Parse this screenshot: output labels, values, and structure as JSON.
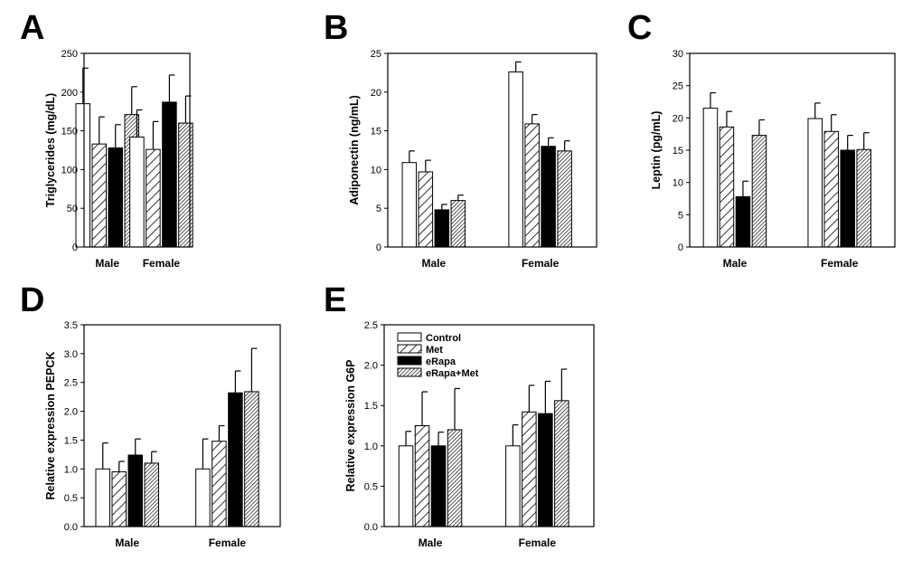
{
  "figure": {
    "series_styles": [
      {
        "name": "Control",
        "pattern": "none",
        "fill": "#ffffff"
      },
      {
        "name": "Met",
        "pattern": "diag-wide",
        "fill": "#ffffff"
      },
      {
        "name": "eRapa",
        "pattern": "none",
        "fill": "#000000"
      },
      {
        "name": "eRapa+Met",
        "pattern": "diag-dense",
        "fill": "#ffffff"
      }
    ],
    "legend": {
      "panel": "E",
      "entries": [
        "Control",
        "Met",
        "eRapa",
        "eRapa+Met"
      ]
    }
  },
  "chart_data": [
    {
      "panel": "A",
      "type": "bar",
      "title": "",
      "xlabel": "",
      "ylabel": "Triglycerides (mg/dL)",
      "categories": [
        "Male",
        "Female"
      ],
      "ylim": [
        0,
        250
      ],
      "yticks": [
        0,
        50,
        100,
        150,
        200,
        250
      ],
      "ytick_labels": [
        "0",
        "50",
        "100",
        "150",
        "200",
        "250"
      ],
      "series": [
        {
          "name": "Control",
          "values": [
            185,
            142
          ],
          "errors": [
            46,
            35
          ]
        },
        {
          "name": "Met",
          "values": [
            133,
            126
          ],
          "errors": [
            35,
            36
          ]
        },
        {
          "name": "eRapa",
          "values": [
            128,
            187
          ],
          "errors": [
            30,
            35
          ]
        },
        {
          "name": "eRapa+Met",
          "values": [
            171,
            160
          ],
          "errors": [
            36,
            35
          ]
        }
      ]
    },
    {
      "panel": "B",
      "type": "bar",
      "title": "",
      "xlabel": "",
      "ylabel": "Adiponectin (ng/mL)",
      "categories": [
        "Male",
        "Female"
      ],
      "ylim": [
        0,
        25
      ],
      "yticks": [
        0,
        5,
        10,
        15,
        20,
        25
      ],
      "ytick_labels": [
        "0",
        "5",
        "10",
        "15",
        "20",
        "25"
      ],
      "series": [
        {
          "name": "Control",
          "values": [
            10.9,
            22.6
          ],
          "errors": [
            1.5,
            1.3
          ]
        },
        {
          "name": "Met",
          "values": [
            9.7,
            15.9
          ],
          "errors": [
            1.5,
            1.2
          ]
        },
        {
          "name": "eRapa",
          "values": [
            4.8,
            13.0
          ],
          "errors": [
            0.7,
            1.1
          ]
        },
        {
          "name": "eRapa+Met",
          "values": [
            6.0,
            12.4
          ],
          "errors": [
            0.7,
            1.3
          ]
        }
      ]
    },
    {
      "panel": "C",
      "type": "bar",
      "title": "",
      "xlabel": "",
      "ylabel": "Leptin (pg/mL)",
      "categories": [
        "Male",
        "Female"
      ],
      "ylim": [
        0,
        30
      ],
      "yticks": [
        0,
        5,
        10,
        15,
        20,
        25,
        30
      ],
      "ytick_labels": [
        "0",
        "5",
        "10",
        "15",
        "20",
        "25",
        "30"
      ],
      "series": [
        {
          "name": "Control",
          "values": [
            21.5,
            19.9
          ],
          "errors": [
            2.4,
            2.4
          ]
        },
        {
          "name": "Met",
          "values": [
            18.6,
            17.9
          ],
          "errors": [
            2.4,
            2.6
          ]
        },
        {
          "name": "eRapa",
          "values": [
            7.8,
            15.0
          ],
          "errors": [
            2.4,
            2.3
          ]
        },
        {
          "name": "eRapa+Met",
          "values": [
            17.3,
            15.1
          ],
          "errors": [
            2.4,
            2.6
          ]
        }
      ]
    },
    {
      "panel": "D",
      "type": "bar",
      "title": "",
      "xlabel": "",
      "ylabel": "Relative expression PEPCK",
      "categories": [
        "Male",
        "Female"
      ],
      "ylim": [
        0,
        3.5
      ],
      "yticks": [
        0,
        0.5,
        1,
        1.5,
        2,
        2.5,
        3,
        3.5
      ],
      "ytick_labels": [
        "0.0",
        "0.5",
        "1.0",
        "1.5",
        "2.0",
        "2.5",
        "3.0",
        "3.5"
      ],
      "series": [
        {
          "name": "Control",
          "values": [
            1.0,
            1.0
          ],
          "errors": [
            0.45,
            0.52
          ]
        },
        {
          "name": "Met",
          "values": [
            0.95,
            1.48
          ],
          "errors": [
            0.18,
            0.27
          ]
        },
        {
          "name": "eRapa",
          "values": [
            1.24,
            2.32
          ],
          "errors": [
            0.28,
            0.38
          ]
        },
        {
          "name": "eRapa+Met",
          "values": [
            1.1,
            2.34
          ],
          "errors": [
            0.2,
            0.75
          ]
        }
      ]
    },
    {
      "panel": "E",
      "type": "bar",
      "title": "",
      "xlabel": "",
      "ylabel": "Relative expression G6P",
      "categories": [
        "Male",
        "Female"
      ],
      "ylim": [
        0,
        2.5
      ],
      "yticks": [
        0,
        0.5,
        1,
        1.5,
        2,
        2.5
      ],
      "ytick_labels": [
        "0.0",
        "0.5",
        "1.0",
        "1.5",
        "2.0",
        "2.5"
      ],
      "series": [
        {
          "name": "Control",
          "values": [
            1.0,
            1.0
          ],
          "errors": [
            0.18,
            0.26
          ]
        },
        {
          "name": "Met",
          "values": [
            1.25,
            1.42
          ],
          "errors": [
            0.42,
            0.33
          ]
        },
        {
          "name": "eRapa",
          "values": [
            1.0,
            1.4
          ],
          "errors": [
            0.17,
            0.4
          ]
        },
        {
          "name": "eRapa+Met",
          "values": [
            1.2,
            1.56
          ],
          "errors": [
            0.51,
            0.39
          ]
        }
      ]
    }
  ]
}
